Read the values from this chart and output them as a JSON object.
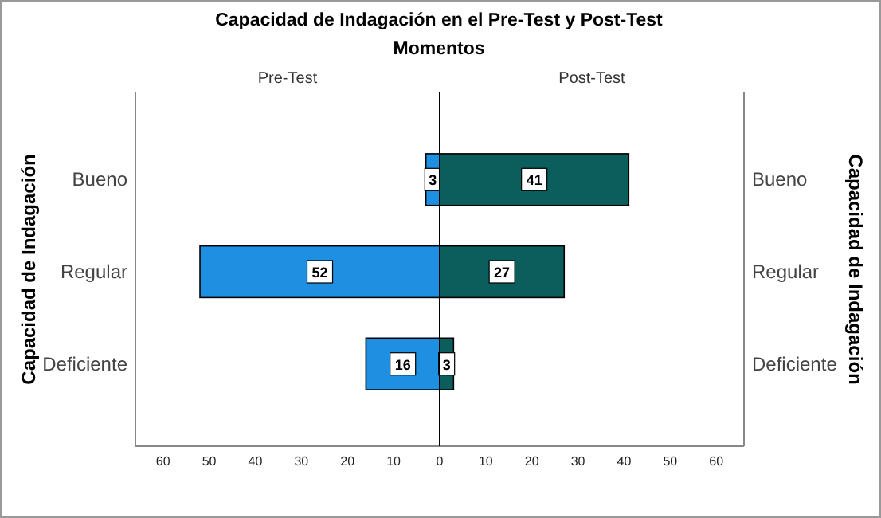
{
  "chart_data": [
    {
      "type": "bar",
      "orientation": "horizontal",
      "title": "Pre-Test",
      "ylabel": "Capacidad de Indagación",
      "categories": [
        "Bueno",
        "Regular",
        "Deficiente"
      ],
      "values": [
        3,
        52,
        16
      ],
      "color": "#1e8fe1",
      "xlim": [
        66,
        0
      ],
      "xticks": [
        60,
        50,
        40,
        30,
        20,
        10,
        0
      ],
      "data_labels": true,
      "annotations": [
        "Capacidad de Indagación  en el Pre-Test y Post-Test",
        "Momentos"
      ]
    },
    {
      "type": "bar",
      "orientation": "horizontal",
      "title": "Post-Test",
      "ylabel": "Capacidad de Indagación",
      "categories": [
        "Bueno",
        "Regular",
        "Deficiente"
      ],
      "values": [
        41,
        27,
        3
      ],
      "color": "#0b5e5b",
      "xlim": [
        0,
        66
      ],
      "xticks": [
        10,
        20,
        30,
        40,
        50,
        60
      ],
      "data_labels": true
    }
  ]
}
